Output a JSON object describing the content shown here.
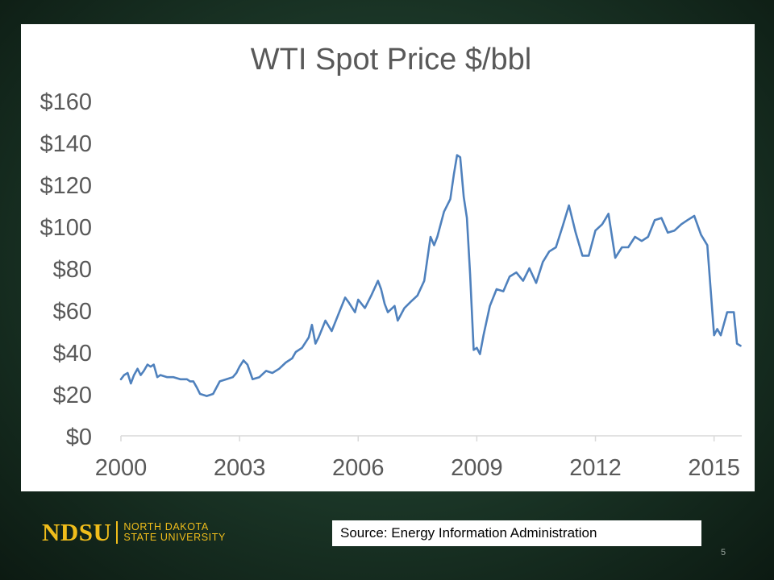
{
  "slide": {
    "number": "5",
    "source": "Source: Energy Information Administration",
    "logo": {
      "mark": "NDSU",
      "line1": "NORTH DAKOTA",
      "line2": "STATE UNIVERSITY"
    }
  },
  "colors": {
    "line": "#4f81bd",
    "axis": "#d9d9d9",
    "text": "#595959",
    "logo": "#f0bd1b"
  },
  "chart_data": {
    "type": "line",
    "title": "WTI Spot Price $/bbl",
    "xlabel": "",
    "ylabel": "",
    "grid": false,
    "legend": "none",
    "xlim": [
      2000,
      2015.7
    ],
    "ylim": [
      0,
      160
    ],
    "x_ticks": [
      2000,
      2003,
      2006,
      2009,
      2012,
      2015
    ],
    "x_tick_labels": [
      "2000",
      "2003",
      "2006",
      "2009",
      "2012",
      "2015"
    ],
    "y_ticks": [
      0,
      20,
      40,
      60,
      80,
      100,
      120,
      140,
      160
    ],
    "y_tick_labels": [
      "$0",
      "$20",
      "$40",
      "$60",
      "$80",
      "$100",
      "$120",
      "$140",
      "$160"
    ],
    "series": [
      {
        "x": [
          2000.0,
          2000.08,
          2000.17,
          2000.25,
          2000.33,
          2000.42,
          2000.5,
          2000.58,
          2000.67,
          2000.75,
          2000.83,
          2000.92,
          2001.0,
          2001.17,
          2001.33,
          2001.5,
          2001.67,
          2001.75,
          2001.83,
          2001.92,
          2002.0,
          2002.17,
          2002.33,
          2002.5,
          2002.67,
          2002.83,
          2002.92,
          2003.0,
          2003.1,
          2003.2,
          2003.33,
          2003.5,
          2003.67,
          2003.83,
          2004.0,
          2004.17,
          2004.33,
          2004.42,
          2004.58,
          2004.75,
          2004.83,
          2004.92,
          2005.0,
          2005.17,
          2005.33,
          2005.5,
          2005.67,
          2005.75,
          2005.92,
          2006.0,
          2006.17,
          2006.33,
          2006.5,
          2006.58,
          2006.67,
          2006.75,
          2006.92,
          2007.0,
          2007.17,
          2007.33,
          2007.5,
          2007.67,
          2007.83,
          2007.92,
          2008.0,
          2008.17,
          2008.33,
          2008.42,
          2008.5,
          2008.58,
          2008.67,
          2008.75,
          2008.83,
          2008.92,
          2009.0,
          2009.08,
          2009.17,
          2009.33,
          2009.5,
          2009.67,
          2009.83,
          2010.0,
          2010.17,
          2010.33,
          2010.5,
          2010.67,
          2010.83,
          2011.0,
          2011.17,
          2011.33,
          2011.5,
          2011.67,
          2011.83,
          2012.0,
          2012.17,
          2012.33,
          2012.5,
          2012.67,
          2012.83,
          2013.0,
          2013.17,
          2013.33,
          2013.5,
          2013.67,
          2013.83,
          2014.0,
          2014.17,
          2014.33,
          2014.5,
          2014.67,
          2014.83,
          2015.0,
          2015.08,
          2015.17,
          2015.33,
          2015.5,
          2015.58,
          2015.67
        ],
        "y": [
          27,
          29,
          30,
          25,
          29,
          32,
          29,
          31,
          34,
          33,
          34,
          28,
          29,
          28,
          28,
          27,
          27,
          26,
          26,
          23,
          20,
          19,
          20,
          26,
          27,
          28,
          30,
          33,
          36,
          34,
          27,
          28,
          31,
          30,
          32,
          35,
          37,
          40,
          42,
          47,
          53,
          44,
          47,
          55,
          50,
          58,
          66,
          64,
          59,
          65,
          61,
          67,
          74,
          70,
          63,
          59,
          62,
          55,
          61,
          64,
          67,
          74,
          95,
          91,
          95,
          107,
          113,
          125,
          134,
          133,
          114,
          104,
          77,
          41,
          42,
          39,
          48,
          62,
          70,
          69,
          76,
          78,
          74,
          80,
          73,
          83,
          88,
          90,
          100,
          110,
          97,
          86,
          86,
          98,
          101,
          106,
          85,
          90,
          90,
          95,
          93,
          95,
          103,
          104,
          97,
          98,
          101,
          103,
          105,
          96,
          91,
          48,
          51,
          48,
          59,
          59,
          44,
          43
        ]
      }
    ]
  }
}
